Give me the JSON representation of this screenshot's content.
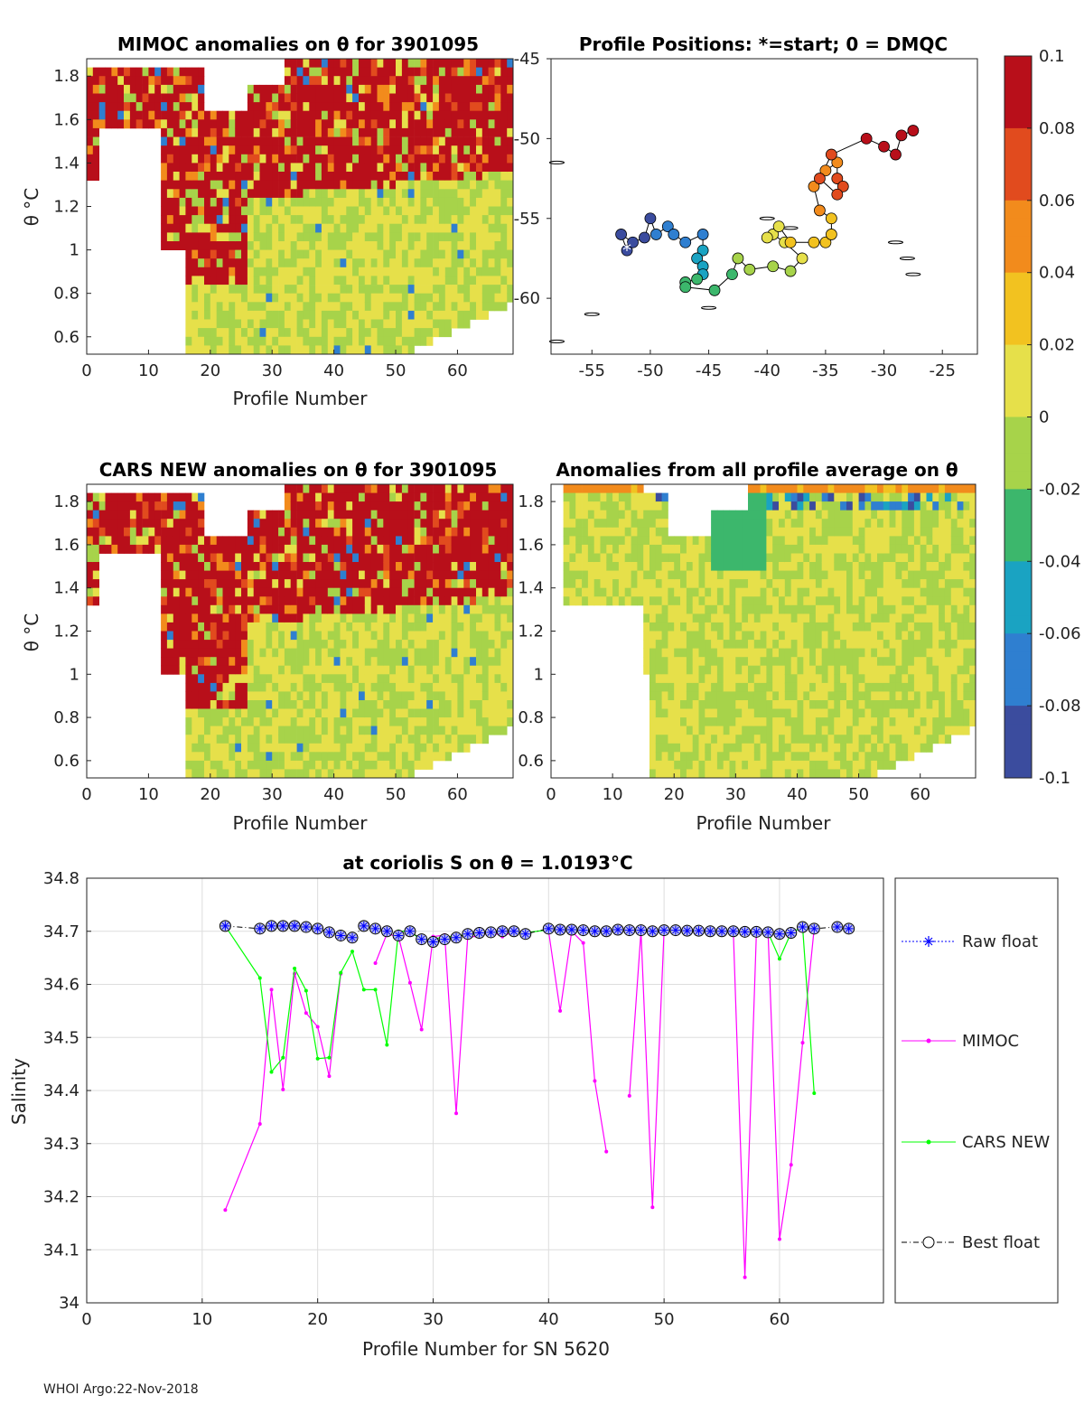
{
  "colors": {
    "mimoc": "#ff00ff",
    "cars": "#00ff00",
    "raw": "#0000ff",
    "best": "#000000",
    "grid": "#dddddd",
    "colormap": [
      "#3b4c9e",
      "#2f7fd0",
      "#1aa3c2",
      "#3cb76c",
      "#a7d34a",
      "#e6e04a",
      "#f2c220",
      "#f28b1c",
      "#e14b1e",
      "#b80f1a"
    ],
    "neutral": "#d9d9d9"
  },
  "panels": {
    "p1": {
      "title": "MIMOC anomalies on θ  for 3901095",
      "xlabel": "Profile Number",
      "ylabel": "θ °C",
      "xticks": [
        "0",
        "10",
        "20",
        "30",
        "40",
        "50",
        "60"
      ],
      "yticks": [
        "0.6",
        "0.8",
        "1",
        "1.2",
        "1.4",
        "1.6",
        "1.8"
      ]
    },
    "p2": {
      "title": "Profile Positions: *=start; 0 = DMQC",
      "xticks": [
        "-55",
        "-50",
        "-45",
        "-40",
        "-35",
        "-30",
        "-25"
      ],
      "yticks": [
        "-45",
        "-50",
        "-55",
        "-60"
      ]
    },
    "p3": {
      "title": "CARS NEW anomalies on θ for 3901095",
      "xlabel": "Profile Number",
      "ylabel": "θ °C",
      "xticks": [
        "0",
        "10",
        "20",
        "30",
        "40",
        "50",
        "60"
      ],
      "yticks": [
        "0.6",
        "0.8",
        "1",
        "1.2",
        "1.4",
        "1.6",
        "1.8"
      ]
    },
    "p4": {
      "title": "Anomalies from all profile average on θ",
      "xlabel": "Profile Number",
      "xticks": [
        "0",
        "10",
        "20",
        "30",
        "40",
        "50",
        "60"
      ],
      "yticks": [
        "0.6",
        "0.8",
        "1",
        "1.2",
        "1.4",
        "1.6",
        "1.8"
      ]
    },
    "colorbar": {
      "ticks": [
        "0.1",
        "0.08",
        "0.06",
        "0.04",
        "0.02",
        "0",
        "-0.02",
        "-0.04",
        "-0.06",
        "-0.08",
        "-0.1"
      ]
    }
  },
  "chart_data": [
    {
      "type": "heatmap",
      "title": "MIMOC anomalies on θ  for 3901095",
      "xlabel": "Profile Number",
      "ylabel": "θ °C",
      "xlim": [
        0,
        69
      ],
      "ylim": [
        0.52,
        1.88
      ],
      "clim": [
        -0.1,
        0.1
      ],
      "description_values": "mostly positive anomalies (>0.1) above ~1.0 °C, near-zero below"
    },
    {
      "type": "scatter",
      "title": "Profile Positions: *=start; 0 = DMQC",
      "xlim": [
        -58.5,
        -22
      ],
      "ylim": [
        -63.5,
        -45
      ],
      "points": [
        [
          -52,
          -57
        ],
        [
          -52.5,
          -56
        ],
        [
          -51.5,
          -56.5
        ],
        [
          -50.5,
          -56.2
        ],
        [
          -50,
          -55
        ],
        [
          -49.5,
          -56
        ],
        [
          -48.5,
          -55.5
        ],
        [
          -48,
          -56
        ],
        [
          -47,
          -56.5
        ],
        [
          -45.5,
          -56
        ],
        [
          -45.5,
          -57
        ],
        [
          -46,
          -57.5
        ],
        [
          -45.5,
          -58
        ],
        [
          -45.5,
          -58.5
        ],
        [
          -46,
          -58.8
        ],
        [
          -47,
          -59
        ],
        [
          -47,
          -59.3
        ],
        [
          -44.5,
          -59.5
        ],
        [
          -43,
          -58.5
        ],
        [
          -42.5,
          -57.5
        ],
        [
          -41.5,
          -58.2
        ],
        [
          -39.5,
          -58
        ],
        [
          -38,
          -58.3
        ],
        [
          -37,
          -57.5
        ],
        [
          -38.5,
          -56.5
        ],
        [
          -39.5,
          -56
        ],
        [
          -40,
          -56.2
        ],
        [
          -39,
          -55.5
        ],
        [
          -38,
          -56.5
        ],
        [
          -36,
          -56.5
        ],
        [
          -35,
          -56.5
        ],
        [
          -34.5,
          -56
        ],
        [
          -34.5,
          -55
        ],
        [
          -35.5,
          -54.5
        ],
        [
          -36,
          -53
        ],
        [
          -35,
          -52
        ],
        [
          -34,
          -51.5
        ],
        [
          -34,
          -52.5
        ],
        [
          -33.5,
          -53
        ],
        [
          -34,
          -53.5
        ],
        [
          -35.5,
          -52.5
        ],
        [
          -34.5,
          -51
        ],
        [
          -31.5,
          -50
        ],
        [
          -30,
          -50.5
        ],
        [
          -29,
          -51
        ],
        [
          -28.5,
          -49.8
        ],
        [
          -27.5,
          -49.5
        ]
      ]
    },
    {
      "type": "heatmap",
      "title": "CARS NEW anomalies on θ for 3901095",
      "xlabel": "Profile Number",
      "ylabel": "θ °C",
      "xlim": [
        0,
        69
      ],
      "ylim": [
        0.52,
        1.88
      ],
      "clim": [
        -0.1,
        0.1
      ]
    },
    {
      "type": "heatmap",
      "title": "Anomalies from all profile average on θ",
      "xlabel": "Profile Number",
      "xlim": [
        0,
        69
      ],
      "ylim": [
        0.52,
        1.88
      ],
      "clim": [
        -0.1,
        0.1
      ]
    },
    {
      "type": "line",
      "title": "at coriolis S on θ = 1.0193°C",
      "xlabel": "Profile Number for SN 5620",
      "ylabel": "Salinity",
      "xlim": [
        0,
        69
      ],
      "ylim": [
        34.0,
        34.8
      ],
      "xticks": [
        "0",
        "10",
        "20",
        "30",
        "40",
        "50",
        "60"
      ],
      "yticks": [
        "34",
        "34.1",
        "34.2",
        "34.3",
        "34.4",
        "34.5",
        "34.6",
        "34.7",
        "34.8"
      ],
      "series": [
        {
          "name": "Raw float",
          "x": [
            12,
            15,
            16,
            17,
            18,
            19,
            20,
            21,
            22,
            23,
            24,
            25,
            26,
            27,
            28,
            29,
            30,
            31,
            32,
            33,
            34,
            35,
            36,
            37,
            38,
            40,
            41,
            42,
            43,
            44,
            45,
            46,
            47,
            48,
            49,
            50,
            51,
            52,
            53,
            54,
            55,
            56,
            57,
            58,
            59,
            60,
            61,
            62,
            63,
            65,
            66
          ],
          "y": [
            34.71,
            34.705,
            34.71,
            34.71,
            34.71,
            34.708,
            34.705,
            34.698,
            34.692,
            34.688,
            34.71,
            34.705,
            34.7,
            34.692,
            34.7,
            34.685,
            34.68,
            34.685,
            34.688,
            34.695,
            34.697,
            34.698,
            34.7,
            34.7,
            34.695,
            34.705,
            34.703,
            34.703,
            34.702,
            34.7,
            34.7,
            34.703,
            34.702,
            34.702,
            34.7,
            34.702,
            34.702,
            34.701,
            34.701,
            34.7,
            34.7,
            34.7,
            34.699,
            34.699,
            34.698,
            34.695,
            34.697,
            34.708,
            34.705,
            34.708,
            34.705
          ]
        },
        {
          "name": "MIMOC",
          "x": [
            12,
            15,
            16,
            17,
            18,
            19,
            20,
            21,
            22,
            null,
            25,
            26,
            27,
            28,
            29,
            30,
            31,
            32,
            33,
            34,
            35,
            36,
            37,
            38,
            null,
            40,
            41,
            42,
            43,
            44,
            45,
            null,
            47,
            48,
            49,
            50,
            51,
            52,
            53,
            54,
            55,
            56,
            57,
            58,
            59,
            60,
            61,
            62,
            63
          ],
          "y": [
            34.175,
            34.337,
            34.59,
            34.402,
            34.62,
            34.546,
            34.52,
            34.427,
            34.62,
            null,
            34.64,
            34.695,
            34.69,
            34.603,
            34.515,
            34.69,
            34.693,
            34.357,
            34.69,
            34.69,
            34.7,
            34.69,
            34.7,
            34.698,
            null,
            34.7,
            34.55,
            34.7,
            34.678,
            34.418,
            34.285,
            null,
            34.39,
            34.7,
            34.18,
            34.7,
            34.7,
            34.7,
            34.7,
            34.7,
            34.7,
            34.7,
            34.048,
            34.7,
            34.7,
            34.12,
            34.26,
            34.49,
            34.705
          ]
        },
        {
          "name": "CARS NEW",
          "x": [
            12,
            15,
            16,
            17,
            18,
            19,
            20,
            21,
            22,
            23,
            24,
            25,
            26,
            27,
            28,
            29,
            30,
            31,
            32,
            33,
            34,
            35,
            36,
            37,
            38,
            40,
            41,
            42,
            43,
            44,
            45,
            46,
            47,
            48,
            49,
            50,
            51,
            52,
            53,
            54,
            55,
            56,
            57,
            58,
            59,
            60,
            61,
            62,
            63
          ],
          "y": [
            34.71,
            34.612,
            34.435,
            34.462,
            34.63,
            34.588,
            34.46,
            34.462,
            34.622,
            34.662,
            34.59,
            34.59,
            34.486,
            34.7,
            34.7,
            34.683,
            34.685,
            34.69,
            34.69,
            34.695,
            34.697,
            34.698,
            34.7,
            34.7,
            34.697,
            34.703,
            34.703,
            34.702,
            34.702,
            34.7,
            34.7,
            34.703,
            34.702,
            34.702,
            34.7,
            34.702,
            34.702,
            34.701,
            34.701,
            34.7,
            34.7,
            34.7,
            34.699,
            34.699,
            34.698,
            34.648,
            34.697,
            34.708,
            34.395
          ]
        },
        {
          "name": "Best float",
          "x": [
            12,
            15,
            16,
            17,
            18,
            19,
            20,
            21,
            22,
            23,
            24,
            25,
            26,
            27,
            28,
            29,
            30,
            31,
            32,
            33,
            34,
            35,
            36,
            37,
            38,
            40,
            41,
            42,
            43,
            44,
            45,
            46,
            47,
            48,
            49,
            50,
            51,
            52,
            53,
            54,
            55,
            56,
            57,
            58,
            59,
            60,
            61,
            62,
            63,
            65,
            66
          ],
          "y": [
            34.71,
            34.705,
            34.71,
            34.71,
            34.71,
            34.708,
            34.705,
            34.698,
            34.692,
            34.688,
            34.71,
            34.705,
            34.7,
            34.692,
            34.7,
            34.685,
            34.68,
            34.685,
            34.688,
            34.695,
            34.697,
            34.698,
            34.7,
            34.7,
            34.695,
            34.705,
            34.703,
            34.703,
            34.702,
            34.7,
            34.7,
            34.703,
            34.702,
            34.702,
            34.7,
            34.702,
            34.702,
            34.701,
            34.701,
            34.7,
            34.7,
            34.7,
            34.699,
            34.699,
            34.698,
            34.695,
            34.697,
            34.708,
            34.705,
            34.708,
            34.705
          ]
        }
      ]
    }
  ],
  "footer": "WHOI Argo:22-Nov-2018"
}
